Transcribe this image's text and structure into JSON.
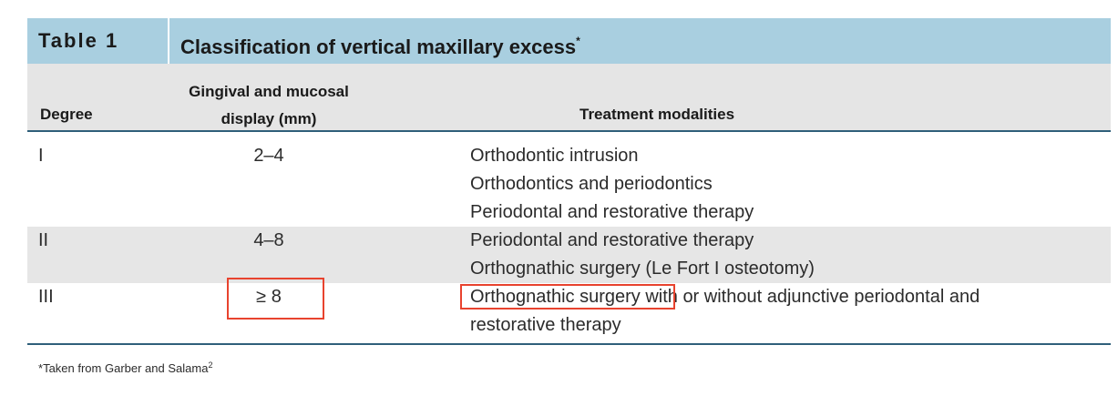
{
  "title": {
    "number": "Table 1",
    "text": "Classification of vertical maxillary excess",
    "marker": "*"
  },
  "header": {
    "degree": "Degree",
    "display_line1": "Gingival and mucosal",
    "display_line2": "display (mm)",
    "treatment": "Treatment modalities"
  },
  "rows": [
    {
      "degree": "I",
      "display": "2–4",
      "treatments": [
        "Orthodontic intrusion",
        "Orthodontics and periodontics",
        "Periodontal and restorative therapy"
      ]
    },
    {
      "degree": "II",
      "display": "4–8",
      "treatments": [
        "Periodontal and restorative therapy",
        "Orthognathic surgery (Le Fort I osteotomy)"
      ]
    },
    {
      "degree": "III",
      "display": "≥ 8",
      "treatments": [
        "Orthognathic surgery with or without adjunctive periodontal and",
        "restorative therapy"
      ]
    }
  ],
  "footnote": {
    "marker": "*",
    "text": "Taken from Garber and Salama",
    "ref": "2"
  },
  "colors": {
    "title_bar": "#a9cfe0",
    "header_band": "#e5e5e5",
    "rule": "#2f5f7a",
    "highlight": "#e8432e"
  }
}
